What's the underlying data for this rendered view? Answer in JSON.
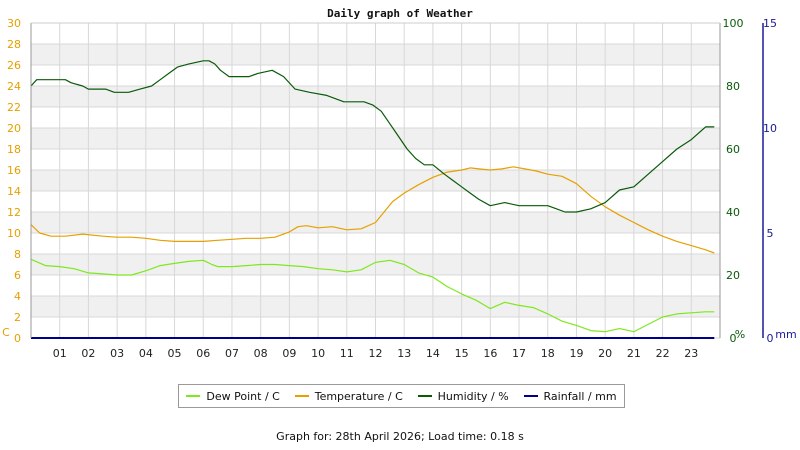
{
  "chart_data": {
    "type": "line",
    "title": "Daily graph of Weather",
    "x_ticks": [
      "01",
      "02",
      "03",
      "04",
      "05",
      "06",
      "07",
      "08",
      "09",
      "10",
      "11",
      "12",
      "13",
      "14",
      "15",
      "16",
      "17",
      "18",
      "19",
      "20",
      "21",
      "22",
      "23"
    ],
    "x_range": [
      0,
      24
    ],
    "left_axis": {
      "unit": "C",
      "range": [
        0,
        30
      ],
      "ticks": [
        0,
        2,
        4,
        6,
        8,
        10,
        12,
        14,
        16,
        18,
        20,
        22,
        24,
        26,
        28,
        30
      ]
    },
    "humidity_axis": {
      "unit": "%",
      "range": [
        0,
        100
      ],
      "ticks": [
        0,
        20,
        40,
        60,
        80,
        100
      ]
    },
    "rain_axis": {
      "unit": "mm",
      "range": [
        0,
        15
      ],
      "ticks": [
        0,
        5,
        10,
        15
      ]
    },
    "series": [
      {
        "name": "Dew Point / C",
        "axis": "left",
        "color": "#7ee81e",
        "points": [
          [
            0,
            7.5
          ],
          [
            0.5,
            6.9
          ],
          [
            1,
            6.8
          ],
          [
            1.5,
            6.6
          ],
          [
            2,
            6.2
          ],
          [
            2.5,
            6.1
          ],
          [
            3,
            6.0
          ],
          [
            3.5,
            6.0
          ],
          [
            4,
            6.4
          ],
          [
            4.5,
            6.9
          ],
          [
            5,
            7.1
          ],
          [
            5.5,
            7.3
          ],
          [
            6,
            7.4
          ],
          [
            6.3,
            7.0
          ],
          [
            6.5,
            6.8
          ],
          [
            7,
            6.8
          ],
          [
            7.5,
            6.9
          ],
          [
            8,
            7.0
          ],
          [
            8.5,
            7.0
          ],
          [
            9,
            6.9
          ],
          [
            9.5,
            6.8
          ],
          [
            10,
            6.6
          ],
          [
            10.5,
            6.5
          ],
          [
            11,
            6.3
          ],
          [
            11.5,
            6.5
          ],
          [
            12,
            7.2
          ],
          [
            12.5,
            7.4
          ],
          [
            13,
            7.0
          ],
          [
            13.5,
            6.2
          ],
          [
            14,
            5.8
          ],
          [
            14.5,
            4.9
          ],
          [
            15,
            4.2
          ],
          [
            15.5,
            3.6
          ],
          [
            16,
            2.8
          ],
          [
            16.5,
            3.4
          ],
          [
            17,
            3.1
          ],
          [
            17.5,
            2.9
          ],
          [
            18,
            2.3
          ],
          [
            18.5,
            1.6
          ],
          [
            19,
            1.2
          ],
          [
            19.5,
            0.7
          ],
          [
            20,
            0.6
          ],
          [
            20.5,
            0.9
          ],
          [
            21,
            0.6
          ],
          [
            21.5,
            1.3
          ],
          [
            22,
            2.0
          ],
          [
            22.5,
            2.3
          ],
          [
            23,
            2.4
          ],
          [
            23.5,
            2.5
          ],
          [
            23.8,
            2.5
          ]
        ]
      },
      {
        "name": "Temperature / C",
        "axis": "left",
        "color": "#e6a000",
        "points": [
          [
            0,
            10.8
          ],
          [
            0.3,
            10.0
          ],
          [
            0.7,
            9.7
          ],
          [
            1.2,
            9.7
          ],
          [
            1.8,
            9.9
          ],
          [
            2.5,
            9.7
          ],
          [
            3,
            9.6
          ],
          [
            3.5,
            9.6
          ],
          [
            4,
            9.5
          ],
          [
            4.5,
            9.3
          ],
          [
            5,
            9.2
          ],
          [
            5.5,
            9.2
          ],
          [
            6,
            9.2
          ],
          [
            6.5,
            9.3
          ],
          [
            7,
            9.4
          ],
          [
            7.5,
            9.5
          ],
          [
            8,
            9.5
          ],
          [
            8.5,
            9.6
          ],
          [
            9,
            10.1
          ],
          [
            9.3,
            10.6
          ],
          [
            9.6,
            10.7
          ],
          [
            10,
            10.5
          ],
          [
            10.5,
            10.6
          ],
          [
            11,
            10.3
          ],
          [
            11.5,
            10.4
          ],
          [
            12,
            11.0
          ],
          [
            12.3,
            12.0
          ],
          [
            12.6,
            13.0
          ],
          [
            13,
            13.8
          ],
          [
            13.5,
            14.6
          ],
          [
            14,
            15.3
          ],
          [
            14.5,
            15.8
          ],
          [
            15,
            16.0
          ],
          [
            15.3,
            16.2
          ],
          [
            15.6,
            16.1
          ],
          [
            16,
            16.0
          ],
          [
            16.4,
            16.1
          ],
          [
            16.8,
            16.3
          ],
          [
            17.2,
            16.1
          ],
          [
            17.6,
            15.9
          ],
          [
            18,
            15.6
          ],
          [
            18.5,
            15.4
          ],
          [
            19,
            14.7
          ],
          [
            19.5,
            13.5
          ],
          [
            20,
            12.5
          ],
          [
            20.5,
            11.7
          ],
          [
            21,
            11.0
          ],
          [
            21.5,
            10.3
          ],
          [
            22,
            9.7
          ],
          [
            22.5,
            9.2
          ],
          [
            23,
            8.8
          ],
          [
            23.5,
            8.4
          ],
          [
            23.8,
            8.1
          ]
        ]
      },
      {
        "name": "Humidity / %",
        "axis": "humidity",
        "color": "#0a5a0a",
        "points": [
          [
            0,
            80
          ],
          [
            0.2,
            82
          ],
          [
            1.2,
            82
          ],
          [
            1.4,
            81
          ],
          [
            1.8,
            80
          ],
          [
            2,
            79
          ],
          [
            2.6,
            79
          ],
          [
            2.9,
            78
          ],
          [
            3.4,
            78
          ],
          [
            3.8,
            79
          ],
          [
            4.2,
            80
          ],
          [
            4.5,
            82
          ],
          [
            4.8,
            84
          ],
          [
            5.1,
            86
          ],
          [
            5.5,
            87
          ],
          [
            6,
            88
          ],
          [
            6.2,
            88
          ],
          [
            6.4,
            87
          ],
          [
            6.6,
            85
          ],
          [
            6.9,
            83
          ],
          [
            7.6,
            83
          ],
          [
            7.9,
            84
          ],
          [
            8.4,
            85
          ],
          [
            8.8,
            83
          ],
          [
            9.2,
            79
          ],
          [
            9.7,
            78
          ],
          [
            10.3,
            77
          ],
          [
            10.9,
            75
          ],
          [
            11.6,
            75
          ],
          [
            11.9,
            74
          ],
          [
            12.2,
            72
          ],
          [
            12.5,
            68
          ],
          [
            12.8,
            64
          ],
          [
            13.1,
            60
          ],
          [
            13.4,
            57
          ],
          [
            13.7,
            55
          ],
          [
            14,
            55
          ],
          [
            14.4,
            52
          ],
          [
            14.7,
            50
          ],
          [
            15,
            48
          ],
          [
            15.3,
            46
          ],
          [
            15.6,
            44
          ],
          [
            16,
            42
          ],
          [
            16.5,
            43
          ],
          [
            17,
            42
          ],
          [
            17.5,
            42
          ],
          [
            18,
            42
          ],
          [
            18.3,
            41
          ],
          [
            18.6,
            40
          ],
          [
            19,
            40
          ],
          [
            19.5,
            41
          ],
          [
            20,
            43
          ],
          [
            20.5,
            47
          ],
          [
            21,
            48
          ],
          [
            21.5,
            52
          ],
          [
            22,
            56
          ],
          [
            22.5,
            60
          ],
          [
            23,
            63
          ],
          [
            23.5,
            67
          ],
          [
            23.8,
            67
          ]
        ]
      },
      {
        "name": "Rainfall / mm",
        "axis": "rain",
        "color": "#00008b",
        "points": [
          [
            0,
            0
          ],
          [
            23.8,
            0
          ]
        ]
      }
    ]
  },
  "footer": "Graph for: 28th April 2026; Load time: 0.18 s"
}
